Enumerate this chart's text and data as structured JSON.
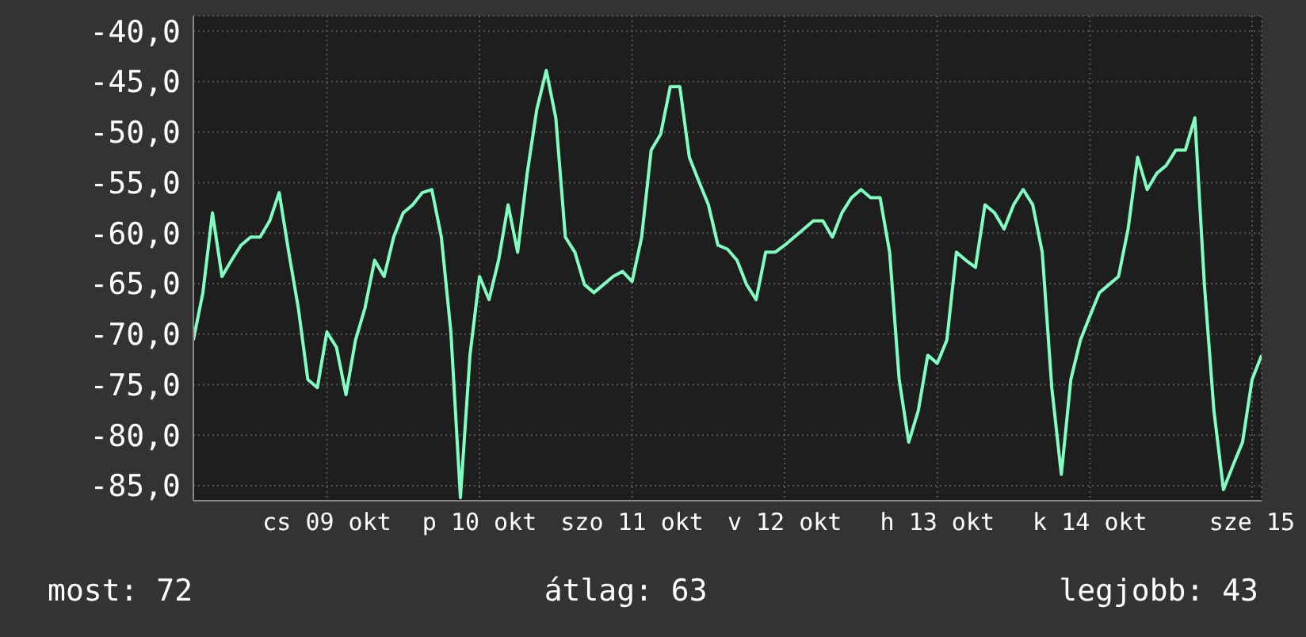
{
  "chart_data": {
    "type": "line",
    "color": "#80ffc0",
    "marker": "none",
    "line_style": "solid",
    "grid": true,
    "legend": false,
    "categories": [
      null,
      null,
      null,
      null,
      null,
      null,
      null,
      null,
      null,
      null,
      null,
      null,
      null,
      null,
      "cs 09 okt",
      null,
      null,
      null,
      null,
      null,
      null,
      null,
      null,
      null,
      null,
      null,
      null,
      null,
      null,
      null,
      "p 10 okt",
      null,
      null,
      null,
      null,
      null,
      null,
      null,
      null,
      null,
      null,
      null,
      null,
      null,
      null,
      null,
      "szo 11 okt",
      null,
      null,
      null,
      null,
      null,
      null,
      null,
      null,
      null,
      null,
      null,
      null,
      null,
      null,
      null,
      "v 12 okt",
      null,
      null,
      null,
      null,
      null,
      null,
      null,
      null,
      null,
      null,
      null,
      null,
      null,
      null,
      null,
      "h 13 okt",
      null,
      null,
      null,
      null,
      null,
      null,
      null,
      null,
      null,
      null,
      null,
      null,
      null,
      null,
      null,
      "k 14 okt",
      null,
      null,
      null,
      null,
      null,
      null,
      null,
      null,
      null,
      null,
      null,
      null,
      null,
      null,
      null,
      null,
      "sze 15",
      null
    ],
    "values": [
      -70.6,
      -65.9,
      -58.0,
      -64.3,
      -62.7,
      -61.2,
      -60.4,
      -60.4,
      -58.8,
      -56.0,
      -61.9,
      -67.4,
      -74.5,
      -75.3,
      -69.8,
      -71.3,
      -76.0,
      -70.6,
      -67.4,
      -62.7,
      -64.3,
      -60.4,
      -58.0,
      -57.2,
      -56.0,
      -55.7,
      -60.4,
      -69.8,
      -86.2,
      -72.1,
      -64.3,
      -66.6,
      -62.7,
      -57.2,
      -61.9,
      -54.1,
      -47.8,
      -43.9,
      -48.6,
      -60.4,
      -61.9,
      -65.1,
      -65.9,
      -65.1,
      -64.3,
      -63.8,
      -64.8,
      -60.4,
      -51.8,
      -50.2,
      -45.5,
      -45.5,
      -52.5,
      -54.9,
      -57.2,
      -61.2,
      -61.6,
      -62.7,
      -65.1,
      -66.6,
      -61.9,
      -61.9,
      -61.2,
      -60.4,
      -59.6,
      -58.8,
      -58.8,
      -60.4,
      -58.0,
      -56.5,
      -55.7,
      -56.5,
      -56.5,
      -61.9,
      -74.5,
      -80.7,
      -77.6,
      -72.1,
      -72.9,
      -70.6,
      -61.9,
      -62.7,
      -63.4,
      -57.2,
      -58.0,
      -59.6,
      -57.2,
      -55.7,
      -57.2,
      -61.9,
      -75.3,
      -83.9,
      -74.5,
      -70.6,
      -68.2,
      -65.9,
      -65.1,
      -64.3,
      -59.6,
      -52.5,
      -55.7,
      -54.1,
      -53.3,
      -51.8,
      -51.8,
      -48.6,
      -65.1,
      -77.6,
      -85.4,
      -83.0,
      -80.7,
      -74.5,
      -72.1
    ],
    "ylim": [
      -86.5,
      -38.5
    ],
    "yticks": [
      {
        "value": -40,
        "label": "-40,0"
      },
      {
        "value": -45,
        "label": "-45,0"
      },
      {
        "value": -50,
        "label": "-50,0"
      },
      {
        "value": -55,
        "label": "-55,0"
      },
      {
        "value": -60,
        "label": "-60,0"
      },
      {
        "value": -65,
        "label": "-65,0"
      },
      {
        "value": -70,
        "label": "-70,0"
      },
      {
        "value": -75,
        "label": "-75,0"
      },
      {
        "value": -80,
        "label": "-80,0"
      },
      {
        "value": -85,
        "label": "-85,0"
      }
    ],
    "annotations": [
      "most: 72",
      "átlag: 63",
      "legjobb: 43"
    ]
  }
}
